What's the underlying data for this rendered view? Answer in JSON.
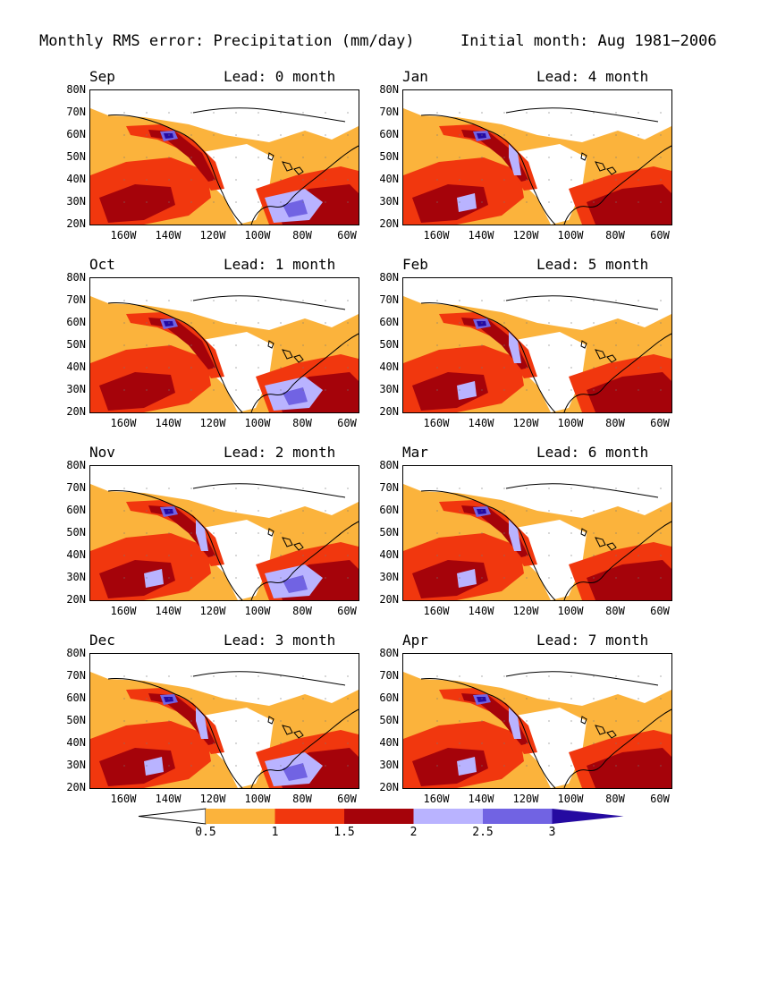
{
  "header": {
    "left": "Monthly RMS error: Precipitation (mm/day)",
    "right": "Initial month: Aug 1981−2006"
  },
  "panels": [
    {
      "month": "Sep",
      "lead": "Lead: 0 month"
    },
    {
      "month": "Jan",
      "lead": "Lead: 4 month"
    },
    {
      "month": "Oct",
      "lead": "Lead: 1 month"
    },
    {
      "month": "Feb",
      "lead": "Lead: 5 month"
    },
    {
      "month": "Nov",
      "lead": "Lead: 2 month"
    },
    {
      "month": "Mar",
      "lead": "Lead: 6 month"
    },
    {
      "month": "Dec",
      "lead": "Lead: 3 month"
    },
    {
      "month": "Apr",
      "lead": "Lead: 7 month"
    }
  ],
  "lat_labels": [
    "80N",
    "70N",
    "60N",
    "50N",
    "40N",
    "30N",
    "20N"
  ],
  "lon_labels": [
    "160W",
    "140W",
    "120W",
    "100W",
    "80W",
    "60W"
  ],
  "colorbar": {
    "labels": [
      "0.5",
      "1",
      "1.5",
      "2",
      "2.5",
      "3"
    ],
    "colors": [
      "#ffffff",
      "#fbb33c",
      "#f1370e",
      "#a5030a",
      "#b9b3ff",
      "#7163e3",
      "#250aa1"
    ]
  }
}
